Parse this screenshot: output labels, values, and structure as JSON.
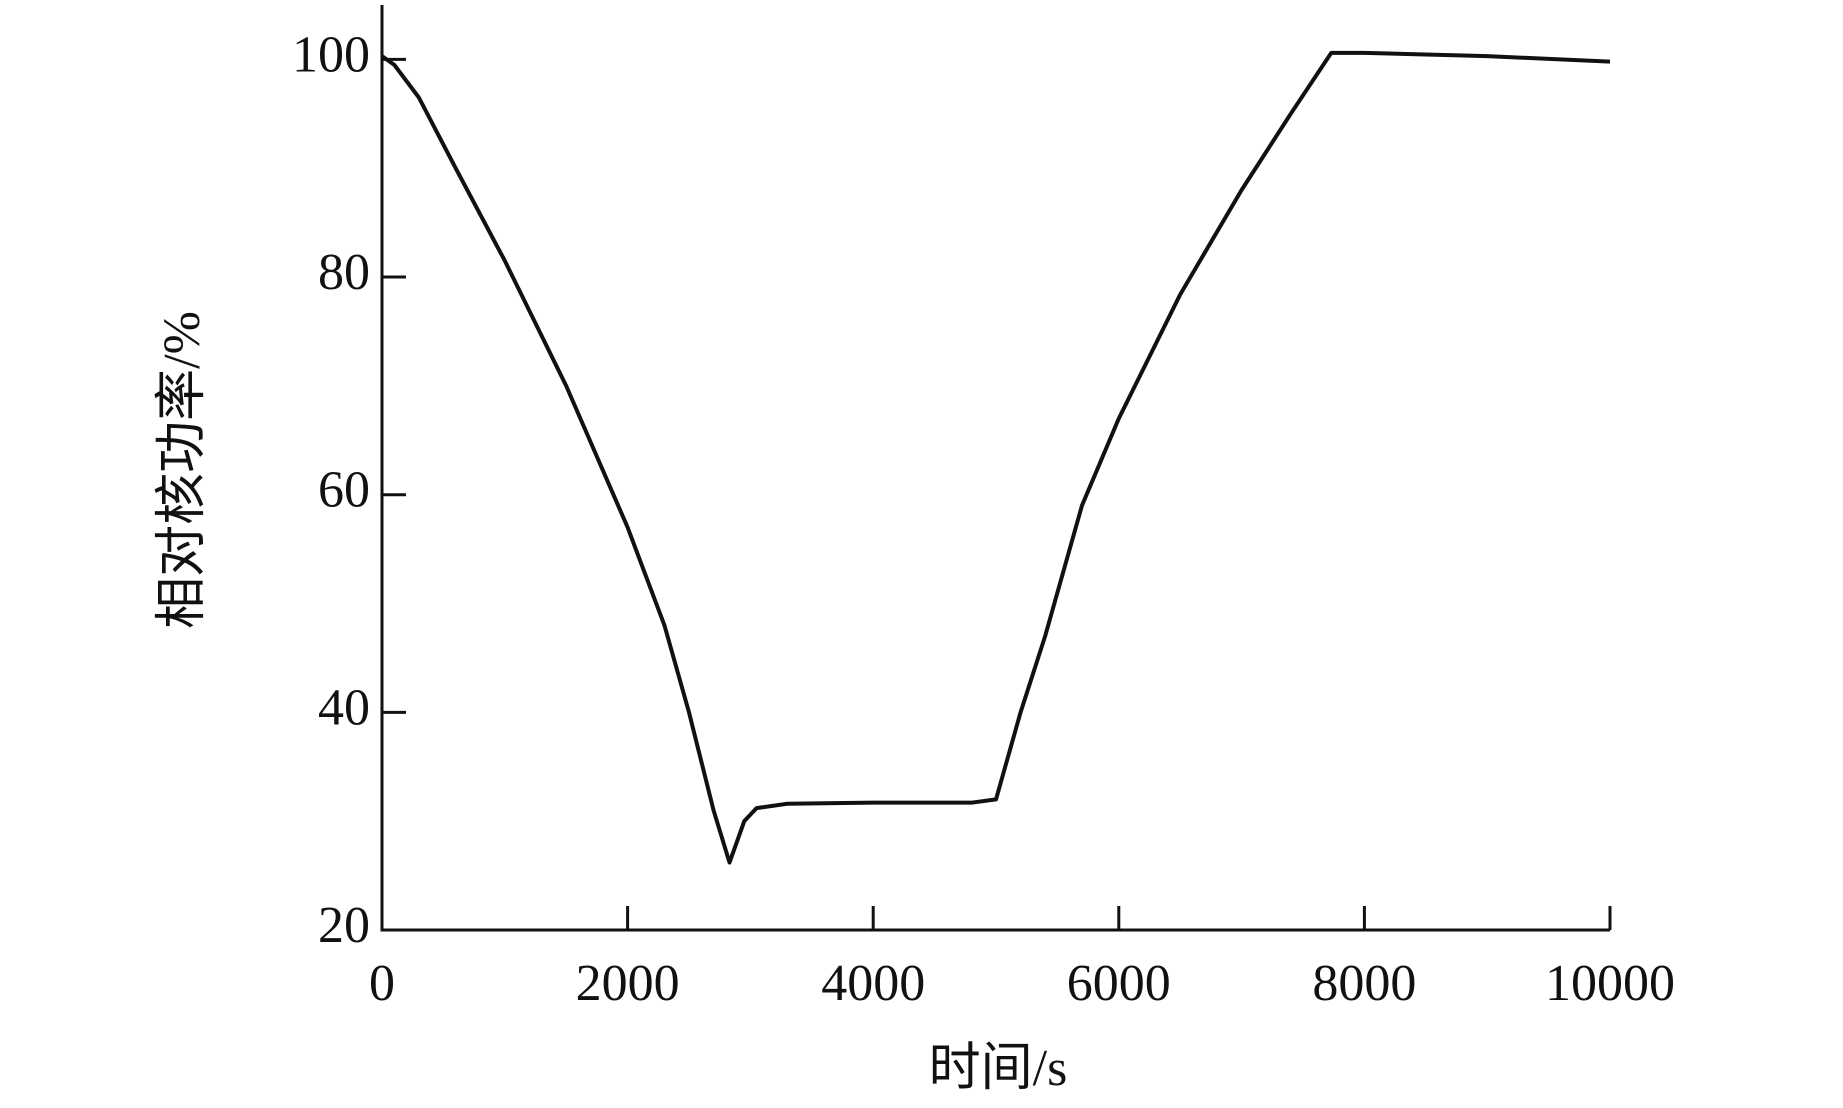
{
  "chart_data": {
    "type": "line",
    "x_label": "时间/s",
    "y_label": "相对核功率/%",
    "x": [
      0,
      100,
      300,
      600,
      1000,
      1500,
      2000,
      2300,
      2500,
      2700,
      2830,
      2950,
      3050,
      3300,
      4000,
      4800,
      5000,
      5200,
      5400,
      5700,
      6000,
      6500,
      7000,
      7400,
      7730,
      8000,
      9000,
      10000
    ],
    "series": [
      {
        "color": "#111111",
        "values": [
          100.3,
          99.5,
          96.5,
          90,
          81.5,
          70,
          57,
          48,
          40,
          31,
          26.2,
          30,
          31.2,
          31.6,
          31.7,
          31.7,
          32,
          40,
          47,
          59,
          67,
          78.4,
          88,
          95,
          100.6,
          100.6,
          100.3,
          99.8
        ]
      }
    ],
    "xlim": [
      0,
      10000
    ],
    "ylim": [
      20,
      105
    ],
    "xticks": [
      0,
      2000,
      4000,
      6000,
      8000,
      10000
    ],
    "yticks": [
      20,
      40,
      60,
      80,
      100
    ],
    "grid": false
  }
}
